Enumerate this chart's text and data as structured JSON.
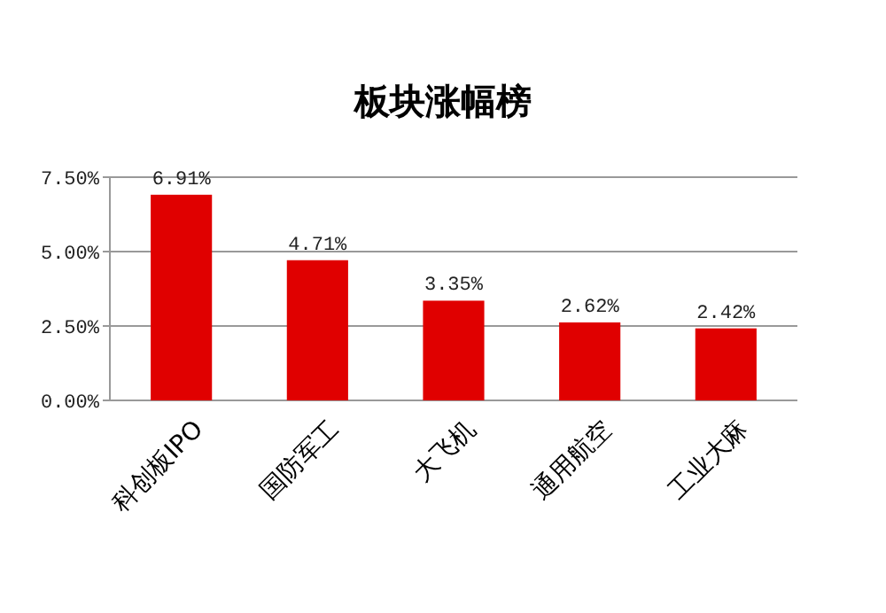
{
  "chart_data": {
    "type": "bar",
    "title": "板块涨幅榜",
    "categories": [
      "科创板IPO",
      "国防军工",
      "大飞机",
      "通用航空",
      "工业大麻"
    ],
    "values": [
      6.91,
      4.71,
      3.35,
      2.62,
      2.42
    ],
    "value_labels": [
      "6.91%",
      "4.71%",
      "3.35%",
      "2.62%",
      "2.42%"
    ],
    "color": "#e00000",
    "ylim": [
      0,
      7.5
    ],
    "yticks": [
      {
        "value": 0,
        "label": "0.00%"
      },
      {
        "value": 2.5,
        "label": "2.50%"
      },
      {
        "value": 5,
        "label": "5.00%"
      },
      {
        "value": 7.5,
        "label": "7.50%"
      }
    ],
    "grid": "y"
  }
}
